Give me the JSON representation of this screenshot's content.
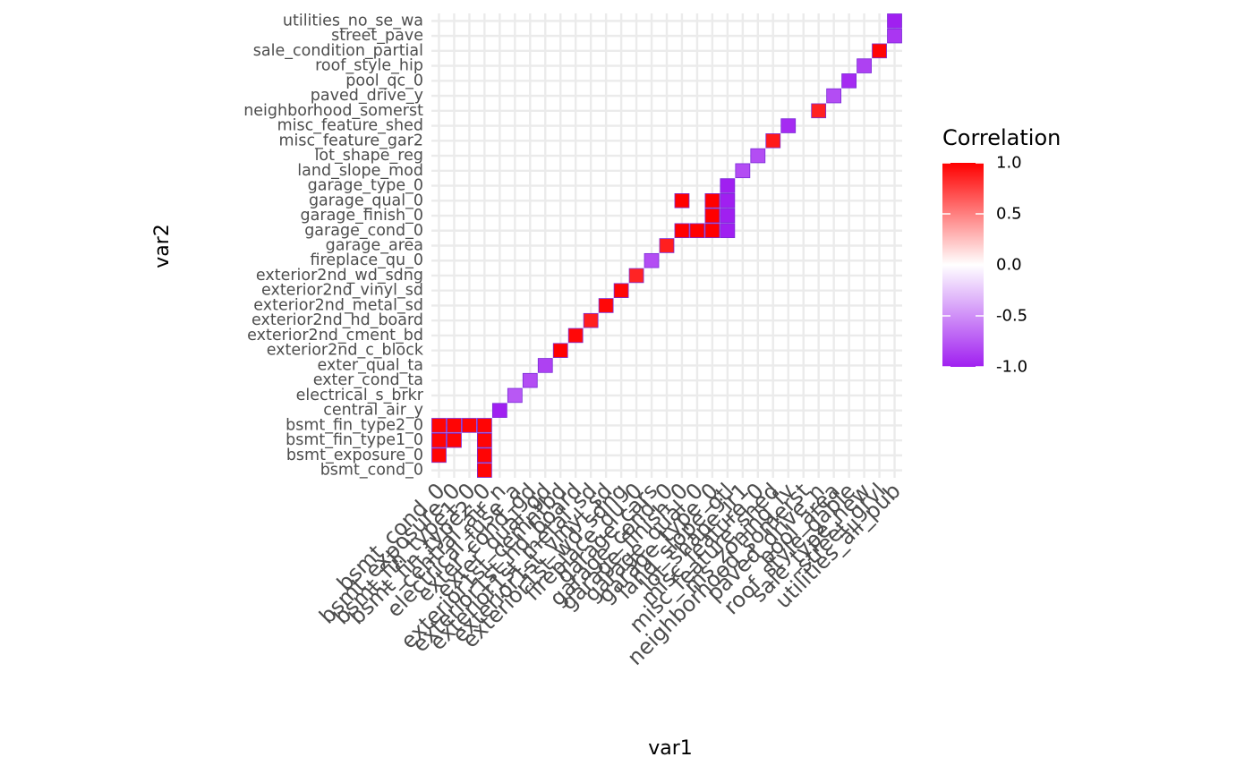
{
  "chart_data": {
    "type": "heatmap",
    "xlabel": "var1",
    "ylabel": "var2",
    "legend": {
      "title": "Correlation",
      "position": "right",
      "ticks": [
        1.0,
        0.5,
        0.0,
        -0.5,
        -1.0
      ],
      "tick_labels": [
        "1.0",
        "0.5",
        "0.0",
        "-0.5",
        "-1.0"
      ],
      "low_color": "#a020f0",
      "mid_color": "#ffffff",
      "high_color": "#ff0000",
      "limits": [
        -1,
        1
      ]
    },
    "grid": true,
    "x_categories": [
      "bsmt_cond_0",
      "bsmt_exposure_0",
      "bsmt_fin_type1_0",
      "bsmt_fin_type2_0",
      "central_air_n",
      "electrical_fuse_a",
      "exter_cond_gd",
      "exter_qual_gd",
      "exterior1st_cemntbd",
      "exterior1st_hd_board",
      "exterior1st_metal_sd",
      "exterior1st_vinyl_sd",
      "exterior1st_wd_sdng",
      "fireplace_qu_0",
      "garage_cars",
      "garage_cond_0",
      "garage_finish_0",
      "garage_qual_0",
      "garage_type_0",
      "land_slope_gtl",
      "lot_shape_ir1",
      "misc_feature_0",
      "misc_feature_shed",
      "ms_zoning_fv",
      "neighborhood_somerst",
      "paved_drive_n",
      "pool_area",
      "roof_style_gable",
      "sale_type_new",
      "street_grvl",
      "utilities_all_pub"
    ],
    "y_categories": [
      "bsmt_cond_0",
      "bsmt_exposure_0",
      "bsmt_fin_type1_0",
      "bsmt_fin_type2_0",
      "central_air_y",
      "electrical_s_brkr",
      "exter_cond_ta",
      "exter_qual_ta",
      "exterior2nd_c_block",
      "exterior2nd_cment_bd",
      "exterior2nd_hd_board",
      "exterior2nd_metal_sd",
      "exterior2nd_vinyl_sd",
      "exterior2nd_wd_sdng",
      "fireplace_qu_0",
      "garage_area",
      "garage_cond_0",
      "garage_finish_0",
      "garage_qual_0",
      "garage_type_0",
      "land_slope_mod",
      "lot_shape_reg",
      "misc_feature_gar2",
      "misc_feature_shed",
      "neighborhood_somerst",
      "paved_drive_y",
      "pool_qc_0",
      "roof_style_hip",
      "sale_condition_partial",
      "street_pave",
      "utilities_no_se_wa"
    ],
    "cells": [
      {
        "x": "bsmt_cond_0",
        "y": "bsmt_fin_type2_0",
        "value": 0.98
      },
      {
        "x": "bsmt_exposure_0",
        "y": "bsmt_fin_type2_0",
        "value": 0.98
      },
      {
        "x": "bsmt_fin_type1_0",
        "y": "bsmt_fin_type2_0",
        "value": 0.98
      },
      {
        "x": "bsmt_fin_type2_0",
        "y": "bsmt_fin_type2_0",
        "value": 0.98
      },
      {
        "x": "bsmt_cond_0",
        "y": "bsmt_fin_type1_0",
        "value": 0.98
      },
      {
        "x": "bsmt_exposure_0",
        "y": "bsmt_fin_type1_0",
        "value": 0.98
      },
      {
        "x": "bsmt_fin_type2_0",
        "y": "bsmt_fin_type1_0",
        "value": 0.98
      },
      {
        "x": "bsmt_cond_0",
        "y": "bsmt_exposure_0",
        "value": 0.98
      },
      {
        "x": "bsmt_fin_type2_0",
        "y": "bsmt_exposure_0",
        "value": 0.98
      },
      {
        "x": "bsmt_fin_type2_0",
        "y": "bsmt_cond_0",
        "value": 0.98
      },
      {
        "x": "central_air_n",
        "y": "central_air_y",
        "value": -1.0
      },
      {
        "x": "electrical_fuse_a",
        "y": "electrical_s_brkr",
        "value": -0.75
      },
      {
        "x": "exter_cond_gd",
        "y": "exter_cond_ta",
        "value": -0.8
      },
      {
        "x": "exter_qual_gd",
        "y": "exter_qual_ta",
        "value": -0.85
      },
      {
        "x": "exterior1st_cemntbd",
        "y": "exterior2nd_c_block",
        "value": 1.0
      },
      {
        "x": "exterior1st_hd_board",
        "y": "exterior2nd_cment_bd",
        "value": 0.97
      },
      {
        "x": "exterior1st_metal_sd",
        "y": "exterior2nd_hd_board",
        "value": 0.88
      },
      {
        "x": "exterior1st_vinyl_sd",
        "y": "exterior2nd_metal_sd",
        "value": 0.97
      },
      {
        "x": "exterior1st_wd_sdng",
        "y": "exterior2nd_vinyl_sd",
        "value": 0.98
      },
      {
        "x": "fireplace_qu_0",
        "y": "exterior2nd_wd_sdng",
        "value": 0.86
      },
      {
        "x": "garage_cars",
        "y": "fireplace_qu_0",
        "value": -0.8
      },
      {
        "x": "garage_cond_0",
        "y": "garage_area",
        "value": 0.88
      },
      {
        "x": "garage_finish_0",
        "y": "garage_cond_0",
        "value": 1.0
      },
      {
        "x": "garage_qual_0",
        "y": "garage_cond_0",
        "value": 1.0
      },
      {
        "x": "garage_type_0",
        "y": "garage_cond_0",
        "value": 1.0
      },
      {
        "x": "land_slope_gtl",
        "y": "garage_cond_0",
        "value": -1.0
      },
      {
        "x": "garage_finish_0",
        "y": "garage_qual_0",
        "value": 1.0
      },
      {
        "x": "garage_type_0",
        "y": "garage_qual_0",
        "value": 1.0
      },
      {
        "x": "land_slope_gtl",
        "y": "garage_qual_0",
        "value": -1.0
      },
      {
        "x": "garage_type_0",
        "y": "garage_finish_0",
        "value": 1.0
      },
      {
        "x": "land_slope_gtl",
        "y": "garage_finish_0",
        "value": -1.0
      },
      {
        "x": "land_slope_gtl",
        "y": "garage_type_0",
        "value": -1.0
      },
      {
        "x": "lot_shape_ir1",
        "y": "land_slope_mod",
        "value": -0.8
      },
      {
        "x": "misc_feature_0",
        "y": "lot_shape_reg",
        "value": -0.8
      },
      {
        "x": "misc_feature_shed",
        "y": "misc_feature_gar2",
        "value": 0.9
      },
      {
        "x": "ms_zoning_fv",
        "y": "misc_feature_shed",
        "value": -0.95
      },
      {
        "x": "paved_drive_n",
        "y": "neighborhood_somerst",
        "value": 0.87
      },
      {
        "x": "pool_area",
        "y": "paved_drive_y",
        "value": -0.8
      },
      {
        "x": "roof_style_gable",
        "y": "pool_qc_0",
        "value": -0.95
      },
      {
        "x": "sale_type_new",
        "y": "roof_style_hip",
        "value": -0.85
      },
      {
        "x": "street_grvl",
        "y": "sale_condition_partial",
        "value": 0.98
      },
      {
        "x": "utilities_all_pub",
        "y": "street_pave",
        "value": -0.9
      },
      {
        "x": "utilities_all_pub",
        "y": "utilities_no_se_wa",
        "value": -1.0
      }
    ]
  }
}
